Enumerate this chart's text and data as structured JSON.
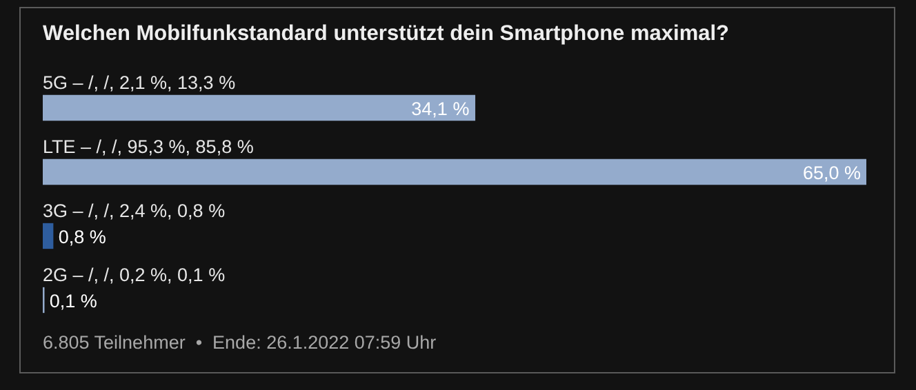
{
  "chart_data": {
    "type": "bar",
    "orientation": "horizontal",
    "title": "Welchen Mobilfunkstandard unterstützt dein Smartphone maximal?",
    "categories": [
      "5G – /, /, 2,1 %, 13,3 %",
      "LTE – /, /, 95,3 %, 85,8 %",
      "3G – /, /, 2,4 %, 0,8 %",
      "2G – /, /, 0,2 %, 0,1 %"
    ],
    "values": [
      34.1,
      65.0,
      0.8,
      0.1
    ],
    "colors": [
      "#94abcc",
      "#94abcc",
      "#2e5d9e",
      "#94abcc"
    ],
    "value_labels": [
      "34,1 %",
      "65,0 %",
      "0,8 %",
      "0,1 %"
    ],
    "xlim": [
      0,
      65
    ],
    "annotations": [
      "6.805 Teilnehmer  •  Ende: 26.1.2022 07:59 Uhr"
    ]
  }
}
